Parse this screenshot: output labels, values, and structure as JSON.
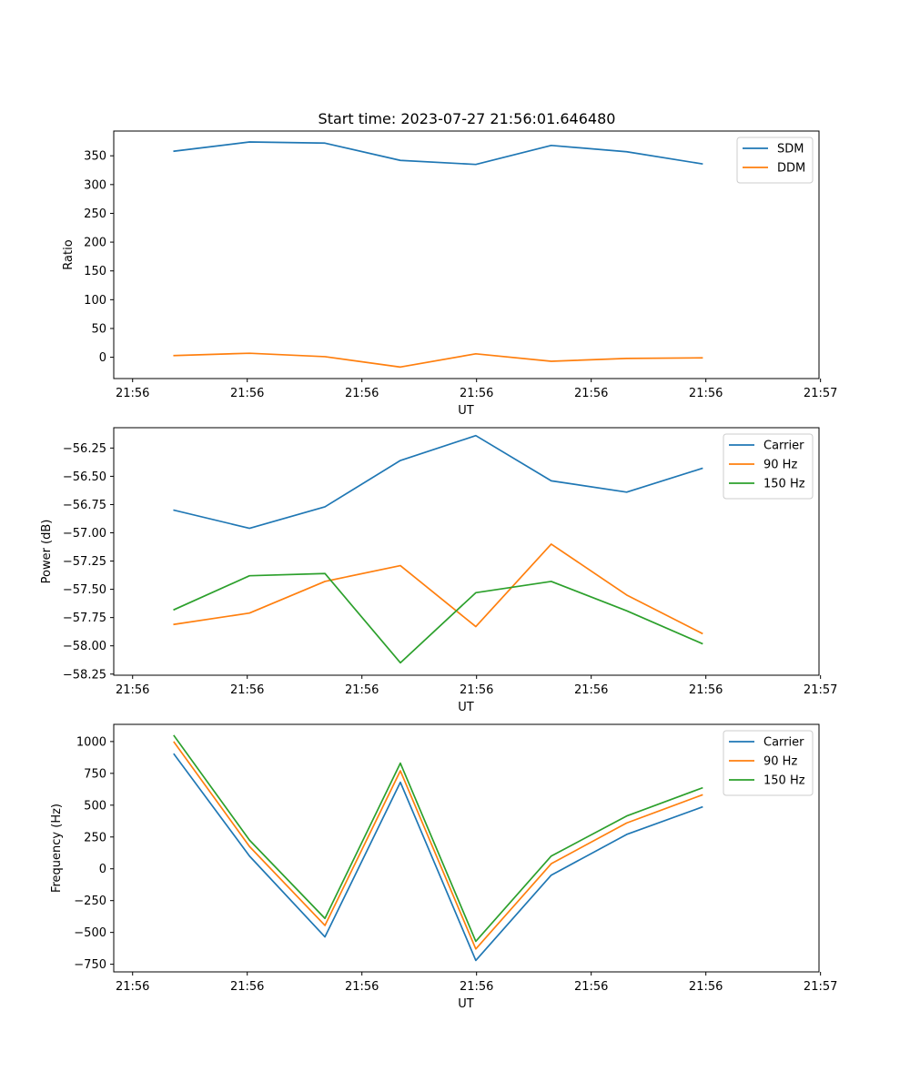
{
  "figure_title": "Start time: 2023-07-27 21:56:01.646480",
  "chart_data": [
    {
      "type": "line",
      "title": "Start time: 2023-07-27 21:56:01.646480",
      "xlabel": "UT",
      "ylabel": "Ratio",
      "x": [
        1,
        2,
        3,
        4,
        5,
        6,
        7,
        8
      ],
      "xlim": [
        0.2,
        9.55
      ],
      "xticks": [
        0.45,
        1.97,
        3.49,
        5.01,
        6.53,
        8.05,
        9.57
      ],
      "xticklabels": [
        "21:56",
        "21:56",
        "21:56",
        "21:56",
        "21:56",
        "21:56",
        "21:57"
      ],
      "ylim": [
        -37,
        393
      ],
      "yticks": [
        0,
        50,
        100,
        150,
        200,
        250,
        300,
        350
      ],
      "yticklabels": [
        "0",
        "50",
        "100",
        "150",
        "200",
        "250",
        "300",
        "350"
      ],
      "legend_position": "upper right",
      "series": [
        {
          "name": "SDM",
          "color": "#1f77b4",
          "values": [
            358,
            374,
            372,
            342,
            335,
            368,
            357,
            336
          ]
        },
        {
          "name": "DDM",
          "color": "#ff7f0e",
          "values": [
            3,
            7,
            1,
            -17,
            6,
            -7,
            -2,
            -1
          ]
        }
      ]
    },
    {
      "type": "line",
      "xlabel": "UT",
      "ylabel": "Power (dB)",
      "x": [
        1,
        2,
        3,
        4,
        5,
        6,
        7,
        8
      ],
      "xlim": [
        0.2,
        9.55
      ],
      "xticks": [
        0.45,
        1.97,
        3.49,
        5.01,
        6.53,
        8.05,
        9.57
      ],
      "xticklabels": [
        "21:56",
        "21:56",
        "21:56",
        "21:56",
        "21:56",
        "21:56",
        "21:57"
      ],
      "ylim": [
        -58.26,
        -56.07
      ],
      "yticks": [
        -58.25,
        -58.0,
        -57.75,
        -57.5,
        -57.25,
        -57.0,
        -56.75,
        -56.5,
        -56.25
      ],
      "yticklabels": [
        "−58.25",
        "−58.00",
        "−57.75",
        "−57.50",
        "−57.25",
        "−57.00",
        "−56.75",
        "−56.50",
        "−56.25"
      ],
      "legend_position": "upper right",
      "series": [
        {
          "name": "Carrier",
          "color": "#1f77b4",
          "values": [
            -56.8,
            -56.96,
            -56.77,
            -56.36,
            -56.14,
            -56.54,
            -56.64,
            -56.43
          ]
        },
        {
          "name": "90 Hz",
          "color": "#ff7f0e",
          "values": [
            -57.81,
            -57.71,
            -57.43,
            -57.29,
            -57.83,
            -57.1,
            -57.55,
            -57.89
          ]
        },
        {
          "name": "150 Hz",
          "color": "#2ca02c",
          "values": [
            -57.68,
            -57.38,
            -57.36,
            -58.15,
            -57.53,
            -57.43,
            -57.69,
            -57.98
          ]
        }
      ]
    },
    {
      "type": "line",
      "xlabel": "UT",
      "ylabel": "Frequency (Hz)",
      "x": [
        1,
        2,
        3,
        4,
        5,
        6,
        7,
        8
      ],
      "xlim": [
        0.2,
        9.55
      ],
      "xticks": [
        0.45,
        1.97,
        3.49,
        5.01,
        6.53,
        8.05,
        9.57
      ],
      "xticklabels": [
        "21:56",
        "21:56",
        "21:56",
        "21:56",
        "21:56",
        "21:56",
        "21:57"
      ],
      "ylim": [
        -810,
        1135
      ],
      "yticks": [
        -750,
        -500,
        -250,
        0,
        250,
        500,
        750,
        1000
      ],
      "yticklabels": [
        "−750",
        "−500",
        "−250",
        "0",
        "250",
        "500",
        "750",
        "1000"
      ],
      "legend_position": "upper right",
      "series": [
        {
          "name": "Carrier",
          "color": "#1f77b4",
          "values": [
            900,
            100,
            -535,
            680,
            -720,
            -50,
            270,
            485
          ]
        },
        {
          "name": "90 Hz",
          "color": "#ff7f0e",
          "values": [
            995,
            175,
            -445,
            770,
            -630,
            40,
            360,
            580
          ]
        },
        {
          "name": "150 Hz",
          "color": "#2ca02c",
          "values": [
            1045,
            225,
            -390,
            830,
            -570,
            100,
            415,
            635
          ]
        }
      ]
    }
  ]
}
